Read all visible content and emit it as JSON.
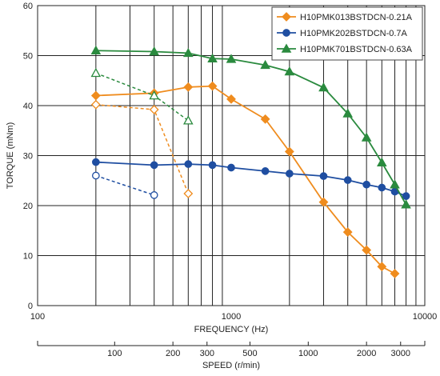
{
  "chart_data": {
    "type": "line",
    "x_scale": "log",
    "xlabel": "FREQUENCY (Hz)",
    "ylabel": "TORQUE (mNm)",
    "xlim": [
      100,
      10000
    ],
    "ylim": [
      0,
      60
    ],
    "x_ticks": [
      {
        "value": 100,
        "label": "100"
      },
      {
        "value": 1000,
        "label": "1000"
      },
      {
        "value": 10000,
        "label": "10000"
      }
    ],
    "y_ticks": [
      {
        "value": 0,
        "label": "0"
      },
      {
        "value": 10,
        "label": "10"
      },
      {
        "value": 20,
        "label": "20"
      },
      {
        "value": 30,
        "label": "30"
      },
      {
        "value": 40,
        "label": "40"
      },
      {
        "value": 50,
        "label": "50"
      },
      {
        "value": 60,
        "label": "60"
      }
    ],
    "secondary_x_axis": {
      "label": "SPEED (r/min)",
      "ticks": [
        {
          "value": 100,
          "label": "100"
        },
        {
          "value": 200,
          "label": "200"
        },
        {
          "value": 300,
          "label": "300"
        },
        {
          "value": 500,
          "label": "500"
        },
        {
          "value": 1000,
          "label": "1000"
        },
        {
          "value": 2000,
          "label": "2000"
        },
        {
          "value": 3000,
          "label": "3000"
        }
      ]
    },
    "grid": true,
    "legend_position": "top-right",
    "series": [
      {
        "name": "H10PMK013BSTDCN-0.21A",
        "color": "#ef8c1e",
        "marker": "diamond",
        "pullout": {
          "x": [
            200,
            400,
            600,
            800,
            1000,
            1500,
            2000,
            3000,
            4000,
            5000,
            6000,
            7000
          ],
          "y": [
            42,
            42.5,
            43.7,
            43.9,
            41.3,
            37.3,
            30.8,
            20.7,
            14.7,
            11.1,
            7.8,
            6.4
          ]
        },
        "pullin": {
          "x": [
            200,
            400,
            600
          ],
          "y": [
            40.2,
            39.2,
            22.4
          ]
        }
      },
      {
        "name": "H10PMK202BSTDCN-0.7A",
        "color": "#1f4ea1",
        "marker": "circle",
        "pullout": {
          "x": [
            200,
            400,
            600,
            800,
            1000,
            1500,
            2000,
            3000,
            4000,
            5000,
            6000,
            7000,
            8000
          ],
          "y": [
            28.7,
            28.1,
            28.3,
            28.1,
            27.6,
            26.9,
            26.4,
            25.9,
            25.1,
            24.2,
            23.6,
            22.8,
            21.9
          ]
        },
        "pullin": {
          "x": [
            200,
            400
          ],
          "y": [
            26.0,
            22.1
          ]
        }
      },
      {
        "name": "H10PMK701BSTDCN-0.63A",
        "color": "#2a8a3e",
        "marker": "triangle",
        "pullout": {
          "x": [
            200,
            400,
            600,
            800,
            1000,
            1500,
            2000,
            3000,
            4000,
            5000,
            6000,
            7000,
            8000
          ],
          "y": [
            51.0,
            50.8,
            50.5,
            49.4,
            49.3,
            48.1,
            46.8,
            43.6,
            38.4,
            33.6,
            28.6,
            24.2,
            20.2
          ]
        },
        "pullin": {
          "x": [
            200,
            400,
            600
          ],
          "y": [
            46.5,
            42.0,
            37.0
          ]
        }
      }
    ]
  }
}
